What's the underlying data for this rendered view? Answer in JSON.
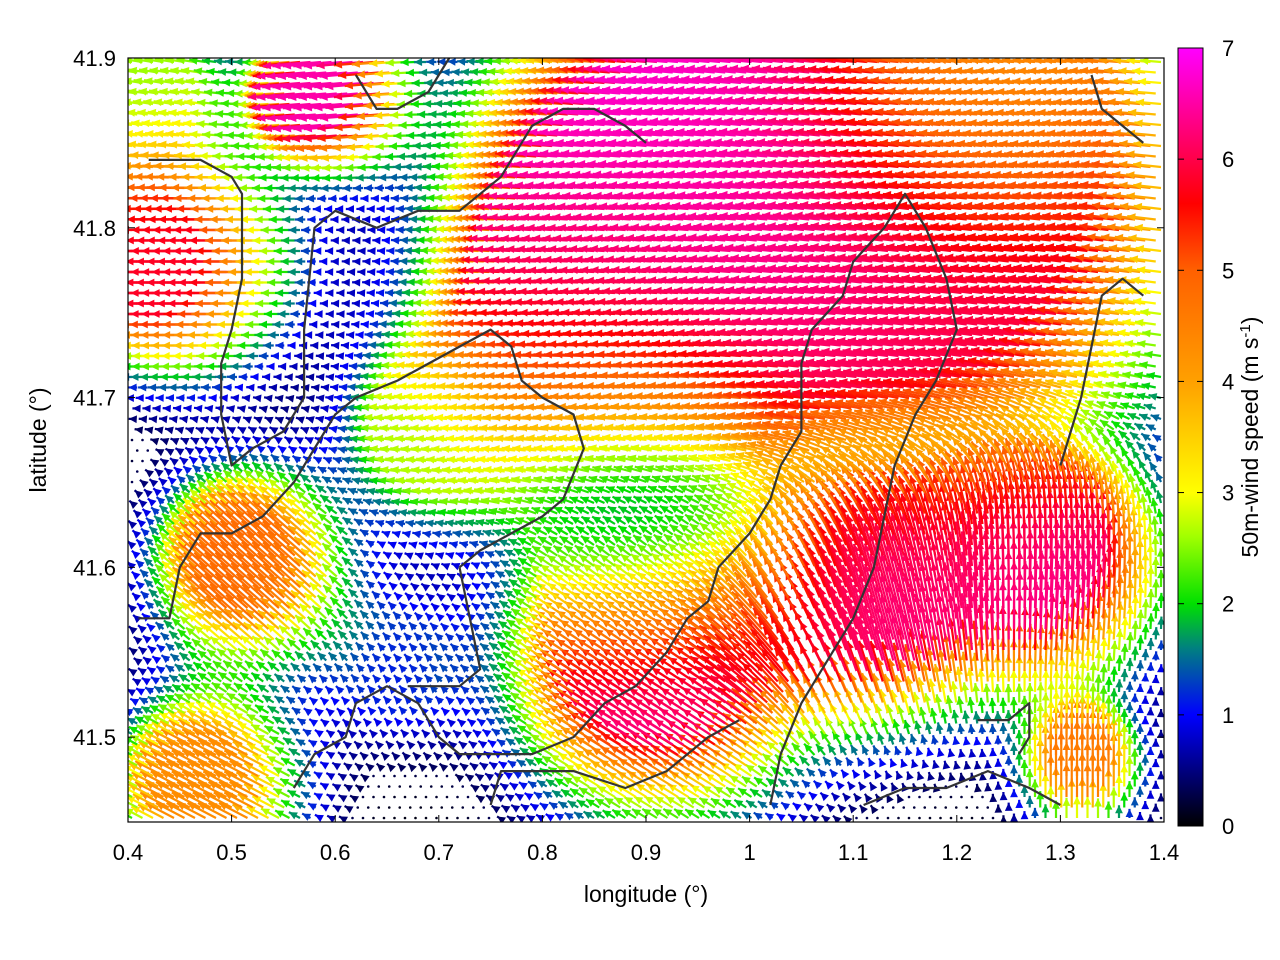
{
  "chart_data": {
    "type": "vector-field",
    "title": "",
    "xlabel": "longitude (°)",
    "ylabel": "latitude (°)",
    "xlim": [
      0.4,
      1.4
    ],
    "ylim": [
      41.45,
      41.9
    ],
    "xticks": [
      "0.4",
      "0.5",
      "0.6",
      "0.7",
      "0.8",
      "0.9",
      "1",
      "1.1",
      "1.2",
      "1.3",
      "1.4"
    ],
    "yticks": [
      "41.5",
      "41.6",
      "41.7",
      "41.8",
      "41.9"
    ],
    "colorbar": {
      "label_main": "50m-wind speed (m s",
      "label_sup": "-1",
      "label_close": ")",
      "range": [
        0,
        7
      ],
      "ticks": [
        "0",
        "1",
        "2",
        "3",
        "4",
        "5",
        "6",
        "7"
      ],
      "stops": [
        {
          "v": 0.0,
          "color": "#000000"
        },
        {
          "v": 1.0,
          "color": "#0000ff"
        },
        {
          "v": 1.6,
          "color": "#008080"
        },
        {
          "v": 2.0,
          "color": "#00e000"
        },
        {
          "v": 2.6,
          "color": "#a0ff00"
        },
        {
          "v": 3.0,
          "color": "#ffff00"
        },
        {
          "v": 4.0,
          "color": "#ffa000"
        },
        {
          "v": 5.0,
          "color": "#ff6000"
        },
        {
          "v": 5.6,
          "color": "#ff0000"
        },
        {
          "v": 6.3,
          "color": "#ff0080"
        },
        {
          "v": 7.0,
          "color": "#ff00ff"
        }
      ]
    },
    "wind_regions": [
      {
        "lon": 0.95,
        "lat": 41.82,
        "u": -6.8,
        "v": 0.6,
        "r": 0.18
      },
      {
        "lon": 1.2,
        "lat": 41.8,
        "u": -6.0,
        "v": 0.8,
        "r": 0.2
      },
      {
        "lon": 0.45,
        "lat": 41.78,
        "u": -5.8,
        "v": 0.0,
        "r": 0.09
      },
      {
        "lon": 0.88,
        "lat": 41.73,
        "u": -5.5,
        "v": 0.0,
        "r": 0.14
      },
      {
        "lon": 0.52,
        "lat": 41.6,
        "u": -3.6,
        "v": 3.2,
        "r": 0.08
      },
      {
        "lon": 0.92,
        "lat": 41.54,
        "u": -5.5,
        "v": 3.4,
        "r": 0.12
      },
      {
        "lon": 1.12,
        "lat": 41.58,
        "u": -1.5,
        "v": 6.2,
        "r": 0.1
      },
      {
        "lon": 1.28,
        "lat": 41.6,
        "u": 0.6,
        "v": 6.5,
        "r": 0.1
      },
      {
        "lon": 0.9,
        "lat": 41.63,
        "u": 0.6,
        "v": 0.7,
        "r": 0.11
      },
      {
        "lon": 0.66,
        "lat": 41.54,
        "u": -0.7,
        "v": 0.8,
        "r": 0.07
      },
      {
        "lon": 0.7,
        "lat": 41.68,
        "u": -2.4,
        "v": 0.3,
        "r": 0.08
      },
      {
        "lon": 0.6,
        "lat": 41.88,
        "u": -6.5,
        "v": -0.6,
        "r": 0.06
      },
      {
        "lon": 0.43,
        "lat": 41.88,
        "u": -2.5,
        "v": 0.4,
        "r": 0.07
      },
      {
        "lon": 0.48,
        "lat": 41.47,
        "u": -3.8,
        "v": 2.0,
        "r": 0.08
      },
      {
        "lon": 1.32,
        "lat": 41.48,
        "u": 0.0,
        "v": 4.5,
        "r": 0.05
      },
      {
        "lon": 1.25,
        "lat": 41.88,
        "u": -3.5,
        "v": 0.0,
        "r": 0.12
      }
    ],
    "coastlines": [
      [
        [
          0.42,
          41.84
        ],
        [
          0.47,
          41.84
        ],
        [
          0.5,
          41.83
        ],
        [
          0.51,
          41.82
        ],
        [
          0.51,
          41.77
        ],
        [
          0.5,
          41.74
        ],
        [
          0.49,
          41.72
        ],
        [
          0.49,
          41.69
        ],
        [
          0.5,
          41.66
        ],
        [
          0.52,
          41.67
        ],
        [
          0.55,
          41.68
        ],
        [
          0.57,
          41.7
        ],
        [
          0.57,
          41.74
        ],
        [
          0.58,
          41.8
        ],
        [
          0.6,
          41.81
        ],
        [
          0.64,
          41.8
        ],
        [
          0.68,
          41.81
        ],
        [
          0.72,
          41.81
        ],
        [
          0.76,
          41.83
        ],
        [
          0.79,
          41.86
        ],
        [
          0.82,
          41.87
        ],
        [
          0.85,
          41.87
        ],
        [
          0.88,
          41.86
        ],
        [
          0.9,
          41.85
        ]
      ],
      [
        [
          0.41,
          41.57
        ],
        [
          0.44,
          41.57
        ],
        [
          0.45,
          41.6
        ],
        [
          0.47,
          41.62
        ],
        [
          0.5,
          41.62
        ],
        [
          0.53,
          41.63
        ],
        [
          0.56,
          41.65
        ],
        [
          0.58,
          41.67
        ],
        [
          0.6,
          41.69
        ],
        [
          0.62,
          41.7
        ],
        [
          0.66,
          41.71
        ],
        [
          0.69,
          41.72
        ],
        [
          0.72,
          41.73
        ],
        [
          0.75,
          41.74
        ],
        [
          0.77,
          41.73
        ],
        [
          0.78,
          41.71
        ],
        [
          0.8,
          41.7
        ],
        [
          0.83,
          41.69
        ],
        [
          0.84,
          41.67
        ],
        [
          0.82,
          41.64
        ],
        [
          0.8,
          41.63
        ],
        [
          0.77,
          41.62
        ],
        [
          0.74,
          41.61
        ],
        [
          0.72,
          41.6
        ]
      ],
      [
        [
          0.72,
          41.6
        ],
        [
          0.73,
          41.57
        ],
        [
          0.74,
          41.54
        ],
        [
          0.72,
          41.53
        ],
        [
          0.69,
          41.53
        ],
        [
          0.67,
          41.53
        ]
      ],
      [
        [
          0.56,
          41.47
        ],
        [
          0.58,
          41.49
        ],
        [
          0.61,
          41.5
        ],
        [
          0.62,
          41.52
        ],
        [
          0.65,
          41.53
        ],
        [
          0.68,
          41.52
        ],
        [
          0.7,
          41.5
        ],
        [
          0.72,
          41.49
        ],
        [
          0.75,
          41.49
        ],
        [
          0.79,
          41.49
        ],
        [
          0.83,
          41.5
        ],
        [
          0.86,
          41.52
        ],
        [
          0.89,
          41.53
        ],
        [
          0.92,
          41.55
        ],
        [
          0.94,
          41.57
        ],
        [
          0.96,
          41.58
        ],
        [
          0.97,
          41.6
        ],
        [
          1.0,
          41.62
        ],
        [
          1.02,
          41.64
        ],
        [
          1.03,
          41.66
        ],
        [
          1.05,
          41.68
        ],
        [
          1.05,
          41.72
        ],
        [
          1.06,
          41.74
        ],
        [
          1.09,
          41.76
        ],
        [
          1.1,
          41.78
        ],
        [
          1.13,
          41.8
        ],
        [
          1.15,
          41.82
        ],
        [
          1.17,
          41.8
        ],
        [
          1.19,
          41.77
        ],
        [
          1.2,
          41.74
        ],
        [
          1.18,
          41.71
        ],
        [
          1.16,
          41.69
        ],
        [
          1.14,
          41.66
        ],
        [
          1.13,
          41.63
        ],
        [
          1.12,
          41.6
        ],
        [
          1.1,
          41.57
        ],
        [
          1.07,
          41.54
        ],
        [
          1.05,
          41.52
        ],
        [
          1.03,
          41.49
        ],
        [
          1.02,
          41.46
        ]
      ],
      [
        [
          0.75,
          41.46
        ],
        [
          0.76,
          41.48
        ],
        [
          0.79,
          41.48
        ],
        [
          0.83,
          41.48
        ],
        [
          0.88,
          41.47
        ],
        [
          0.92,
          41.48
        ],
        [
          0.96,
          41.5
        ],
        [
          0.99,
          41.51
        ]
      ],
      [
        [
          1.22,
          41.51
        ],
        [
          1.25,
          41.51
        ],
        [
          1.27,
          41.52
        ],
        [
          1.27,
          41.5
        ],
        [
          1.26,
          41.49
        ]
      ],
      [
        [
          1.11,
          41.46
        ],
        [
          1.15,
          41.47
        ],
        [
          1.19,
          41.47
        ],
        [
          1.23,
          41.48
        ],
        [
          1.27,
          41.47
        ],
        [
          1.3,
          41.46
        ]
      ],
      [
        [
          1.3,
          41.66
        ],
        [
          1.32,
          41.7
        ],
        [
          1.33,
          41.73
        ],
        [
          1.34,
          41.76
        ],
        [
          1.36,
          41.77
        ],
        [
          1.38,
          41.76
        ]
      ],
      [
        [
          1.33,
          41.89
        ],
        [
          1.34,
          41.87
        ],
        [
          1.36,
          41.86
        ],
        [
          1.38,
          41.85
        ]
      ],
      [
        [
          0.62,
          41.89
        ],
        [
          0.64,
          41.87
        ],
        [
          0.66,
          41.87
        ],
        [
          0.69,
          41.88
        ],
        [
          0.71,
          41.9
        ]
      ]
    ]
  }
}
